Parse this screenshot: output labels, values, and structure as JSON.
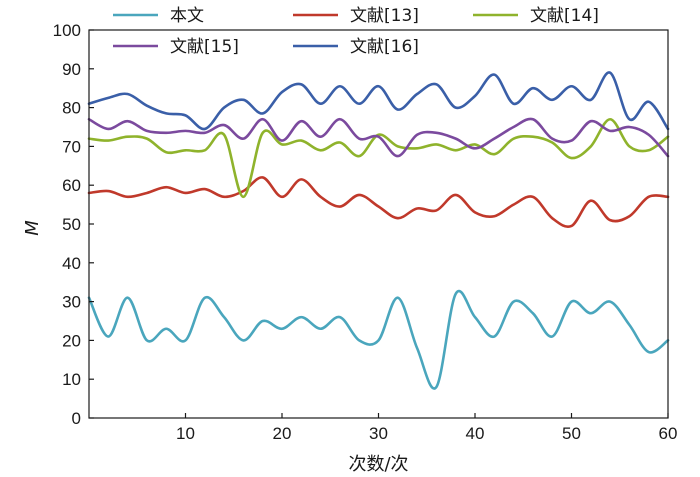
{
  "chart_data": {
    "type": "line",
    "title": "",
    "xlabel": "次数/次",
    "ylabel": "M",
    "xlim": [
      0,
      60
    ],
    "ylim": [
      0,
      100
    ],
    "xticks": [
      10,
      20,
      30,
      40,
      50,
      60
    ],
    "yticks": [
      0,
      10,
      20,
      30,
      40,
      50,
      60,
      70,
      80,
      90,
      100
    ],
    "grid": false,
    "legend_position": "top",
    "series": [
      {
        "name": "本文",
        "color": "#4aa6bd",
        "x": [
          0,
          2,
          4,
          6,
          8,
          10,
          12,
          14,
          16,
          18,
          20,
          22,
          24,
          26,
          28,
          30,
          32,
          34,
          36,
          38,
          40,
          42,
          44,
          46,
          48,
          50,
          52,
          54,
          56,
          58,
          60
        ],
        "values": [
          31,
          21,
          31,
          20,
          23,
          20,
          31,
          26,
          20,
          25,
          23,
          26,
          23,
          26,
          20,
          20,
          31,
          18,
          8,
          32,
          26,
          21,
          30,
          27,
          21,
          30,
          27,
          30,
          24,
          17,
          20
        ]
      },
      {
        "name": "文献[13]",
        "color": "#c0392b",
        "x": [
          0,
          2,
          4,
          6,
          8,
          10,
          12,
          14,
          16,
          18,
          20,
          22,
          24,
          26,
          28,
          30,
          32,
          34,
          36,
          38,
          40,
          42,
          44,
          46,
          48,
          50,
          52,
          54,
          56,
          58,
          60
        ],
        "values": [
          58,
          58.5,
          57,
          58,
          59.5,
          58,
          59,
          57,
          58.5,
          62,
          57,
          61.5,
          57,
          54.5,
          57.5,
          54.5,
          51.5,
          54,
          53.5,
          57.5,
          53,
          52,
          55,
          57,
          51.5,
          49.5,
          56,
          51,
          52,
          57,
          57
        ]
      },
      {
        "name": "文献[14]",
        "color": "#8fb32c",
        "x": [
          0,
          2,
          4,
          6,
          8,
          10,
          12,
          14,
          16,
          18,
          20,
          22,
          24,
          26,
          28,
          30,
          32,
          34,
          36,
          38,
          40,
          42,
          44,
          46,
          48,
          50,
          52,
          54,
          56,
          58,
          60
        ],
        "values": [
          72,
          71.5,
          72.5,
          72,
          68.5,
          69,
          69,
          73,
          57,
          73.5,
          70.5,
          71.5,
          69,
          71,
          67.5,
          73,
          70,
          69.5,
          70.5,
          69,
          70.5,
          68,
          72,
          72.5,
          71,
          67,
          70,
          77,
          70,
          69,
          72.5
        ]
      },
      {
        "name": "文献[15]",
        "color": "#7b4a9e",
        "x": [
          0,
          2,
          4,
          6,
          8,
          10,
          12,
          14,
          16,
          18,
          20,
          22,
          24,
          26,
          28,
          30,
          32,
          34,
          36,
          38,
          40,
          42,
          44,
          46,
          48,
          50,
          52,
          54,
          56,
          58,
          60
        ],
        "values": [
          77,
          74.5,
          76.5,
          74,
          73.5,
          74,
          73.5,
          75.5,
          72,
          77,
          71.5,
          76.5,
          72.5,
          77,
          72,
          72.5,
          67.5,
          73,
          73.5,
          72,
          69.5,
          72,
          75,
          77,
          72,
          71.5,
          76.5,
          74,
          75,
          73,
          67.5
        ]
      },
      {
        "name": "文献[16]",
        "color": "#3a5fa8",
        "x": [
          0,
          2,
          4,
          6,
          8,
          10,
          12,
          14,
          16,
          18,
          20,
          22,
          24,
          26,
          28,
          30,
          32,
          34,
          36,
          38,
          40,
          42,
          44,
          46,
          48,
          50,
          52,
          54,
          56,
          58,
          60
        ],
        "values": [
          81,
          82.5,
          83.5,
          80.5,
          78.5,
          78,
          74.5,
          80,
          82,
          78.5,
          84,
          86,
          81,
          85.5,
          81,
          85.5,
          79.5,
          83.5,
          86,
          80,
          83,
          88.5,
          81,
          85,
          82,
          85.5,
          82,
          89,
          77,
          81.5,
          74.5
        ]
      }
    ]
  }
}
